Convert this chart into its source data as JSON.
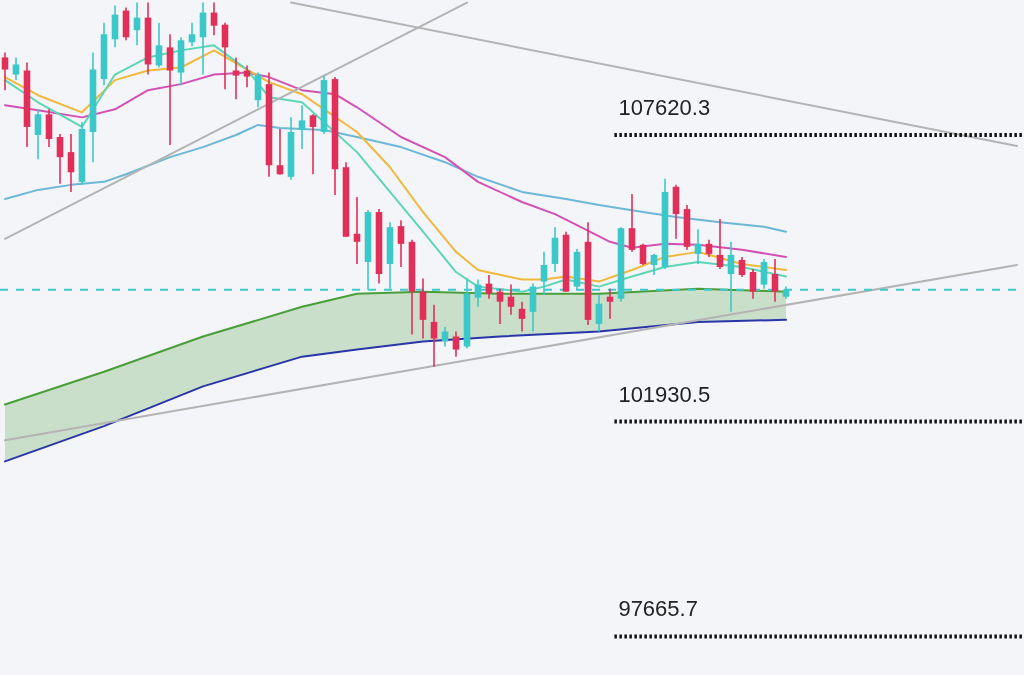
{
  "chart_data": {
    "type": "candlestick",
    "ylim": [
      96900,
      110300
    ],
    "categories": [
      null,
      null,
      null,
      null,
      null,
      null,
      null,
      null,
      null,
      null,
      null,
      null,
      null,
      null,
      null,
      null,
      null,
      null,
      null,
      null,
      null,
      null,
      null,
      null,
      null,
      null,
      null,
      null,
      null,
      null,
      null,
      null,
      null,
      null,
      null,
      null,
      null,
      null,
      null,
      null,
      null,
      null,
      null,
      null,
      null,
      null,
      null,
      null,
      null,
      null,
      null,
      null,
      null,
      null,
      null,
      null,
      null,
      null,
      null,
      null,
      null,
      null,
      null,
      null,
      null,
      null,
      null,
      null,
      null,
      null,
      null,
      null,
      null,
      null,
      null,
      null,
      null,
      null,
      null,
      null,
      null,
      null,
      null,
      null,
      null,
      null,
      null,
      null,
      null,
      null,
      null,
      null,
      null
    ],
    "ohlc": [
      [
        109160,
        109260,
        108510,
        108920
      ],
      [
        108820,
        109160,
        108710,
        109020
      ],
      [
        108900,
        109060,
        107380,
        107780
      ],
      [
        107620,
        108130,
        107140,
        108030
      ],
      [
        108030,
        108130,
        107380,
        107540
      ],
      [
        107580,
        107640,
        106650,
        107180
      ],
      [
        107280,
        107640,
        106490,
        106880
      ],
      [
        106690,
        107880,
        106630,
        107740
      ],
      [
        107680,
        109260,
        107080,
        108920
      ],
      [
        108730,
        109850,
        108610,
        109620
      ],
      [
        109520,
        110190,
        109360,
        110010
      ],
      [
        110090,
        110150,
        109500,
        109560
      ],
      [
        109700,
        110250,
        109400,
        109950
      ],
      [
        109950,
        110250,
        108820,
        109020
      ],
      [
        109000,
        109850,
        108960,
        109400
      ],
      [
        109360,
        109620,
        107420,
        108900
      ],
      [
        108860,
        109560,
        108610,
        109500
      ],
      [
        109460,
        109850,
        109380,
        109620
      ],
      [
        109560,
        110250,
        108820,
        110050
      ],
      [
        110050,
        110250,
        109600,
        109790
      ],
      [
        109810,
        109850,
        108530,
        109360
      ],
      [
        108900,
        109160,
        108330,
        108800
      ],
      [
        108900,
        109000,
        108570,
        108780
      ],
      [
        108310,
        108860,
        108170,
        108820
      ],
      [
        108630,
        108860,
        106790,
        107020
      ],
      [
        107020,
        107740,
        106830,
        106840
      ],
      [
        106790,
        107970,
        106730,
        107680
      ],
      [
        107720,
        108210,
        107340,
        107910
      ],
      [
        108010,
        108030,
        106840,
        107780
      ],
      [
        107680,
        108800,
        107640,
        108710
      ],
      [
        108730,
        108770,
        106430,
        106940
      ],
      [
        106980,
        107080,
        105600,
        105600
      ],
      [
        105660,
        106390,
        105060,
        105500
      ],
      [
        105100,
        106130,
        104550,
        106090
      ],
      [
        106090,
        106150,
        104670,
        104860
      ],
      [
        105060,
        105890,
        104570,
        105790
      ],
      [
        105810,
        105930,
        105000,
        105460
      ],
      [
        105500,
        105540,
        103660,
        104510
      ],
      [
        104510,
        104770,
        103580,
        103950
      ],
      [
        103910,
        104250,
        103020,
        103580
      ],
      [
        103520,
        103810,
        103420,
        103720
      ],
      [
        103620,
        103720,
        103220,
        103360
      ],
      [
        103420,
        104770,
        103380,
        104470
      ],
      [
        104390,
        104750,
        104210,
        104650
      ],
      [
        104670,
        104840,
        104370,
        104470
      ],
      [
        104510,
        104570,
        103870,
        104310
      ],
      [
        104410,
        104650,
        104050,
        104210
      ],
      [
        104170,
        104310,
        103720,
        103970
      ],
      [
        104110,
        104670,
        103720,
        104610
      ],
      [
        104710,
        105300,
        104450,
        105040
      ],
      [
        105060,
        105790,
        104900,
        105580
      ],
      [
        105640,
        105700,
        104510,
        104510
      ],
      [
        104610,
        105360,
        104550,
        105300
      ],
      [
        105500,
        105890,
        103850,
        103950
      ],
      [
        103870,
        104450,
        103720,
        104270
      ],
      [
        104410,
        104570,
        103970,
        104310
      ],
      [
        104370,
        105790,
        104310,
        105770
      ],
      [
        105770,
        106450,
        105300,
        105340
      ],
      [
        105440,
        105460,
        105040,
        105060
      ],
      [
        105040,
        105260,
        104840,
        105240
      ],
      [
        105000,
        106750,
        104960,
        106490
      ],
      [
        106590,
        106630,
        105560,
        106050
      ],
      [
        106150,
        106230,
        105340,
        105400
      ],
      [
        105260,
        105750,
        105060,
        105460
      ],
      [
        105460,
        105540,
        105200,
        105260
      ],
      [
        105240,
        105950,
        104960,
        105000
      ],
      [
        104860,
        105500,
        104110,
        105240
      ],
      [
        105140,
        105200,
        104800,
        104840
      ],
      [
        104900,
        104960,
        104370,
        104510
      ],
      [
        104650,
        105160,
        104570,
        105100
      ],
      [
        104860,
        105160,
        104310,
        104510
      ],
      [
        104410,
        104610,
        104370,
        104550
      ],
      null,
      null,
      null,
      null,
      null,
      null,
      null,
      null,
      null,
      null,
      null,
      null,
      null,
      null,
      null,
      null,
      null,
      null,
      null,
      null,
      null
    ],
    "colors": [
      "#e0305a",
      "#3cc8c8",
      "#e0305a",
      "#3cc8c8",
      "#e0305a",
      "#e0305a",
      "#e0305a",
      "#3cc8c8",
      "#3cc8c8",
      "#3cc8c8",
      "#3cc8c8",
      "#e0305a",
      "#3cc8c8",
      "#e0305a",
      "#3cc8c8",
      "#e0305a",
      "#3cc8c8",
      "#3cc8c8",
      "#3cc8c8",
      "#e0305a",
      "#e0305a",
      "#e0305a",
      "#e0305a",
      "#3cc8c8",
      "#e0305a",
      "#e0305a",
      "#3cc8c8",
      "#3cc8c8",
      "#e0305a",
      "#3cc8c8",
      "#e0305a",
      "#e0305a",
      "#e0305a",
      "#3cc8c8",
      "#e0305a",
      "#3cc8c8",
      "#e0305a",
      "#e0305a",
      "#e0305a",
      "#e0305a",
      "#3cc8c8",
      "#e0305a",
      "#3cc8c8",
      "#3cc8c8",
      "#e0305a",
      "#e0305a",
      "#e0305a",
      "#e0305a",
      "#3cc8c8",
      "#3cc8c8",
      "#3cc8c8",
      "#e0305a",
      "#3cc8c8",
      "#e0305a",
      "#3cc8c8",
      "#e0305a",
      "#3cc8c8",
      "#e0305a",
      "#e0305a",
      "#3cc8c8",
      "#3cc8c8",
      "#e0305a",
      "#e0305a",
      "#3cc8c8",
      "#e0305a",
      "#e0305a",
      "#3cc8c8",
      "#e0305a",
      "#e0305a",
      "#3cc8c8",
      "#e0305a",
      "#3cc8c8",
      null,
      null,
      null,
      null,
      null,
      null,
      null,
      null,
      null,
      null,
      null,
      null,
      null,
      null,
      null,
      null,
      null,
      null,
      null,
      null,
      null
    ],
    "series": [
      {
        "type": "line",
        "color": "#4a9e3a",
        "values": [
          102270,
          null,
          null,
          null,
          null,
          null,
          null,
          null,
          null,
          102920,
          null,
          null,
          null,
          null,
          null,
          null,
          null,
          null,
          103620,
          null,
          null,
          null,
          null,
          null,
          null,
          null,
          null,
          104210,
          null,
          null,
          null,
          null,
          104470,
          null,
          null,
          null,
          null,
          null,
          104510,
          null,
          null,
          null,
          null,
          null,
          null,
          104470,
          null,
          null,
          null,
          null,
          null,
          null,
          null,
          null,
          104470,
          null,
          null,
          null,
          null,
          null,
          null,
          null,
          null,
          104570,
          null,
          null,
          null,
          null,
          null,
          null,
          null,
          104510,
          null,
          null,
          null,
          null,
          null,
          null,
          null,
          null,
          null,
          null,
          null,
          null,
          null,
          null,
          null,
          null,
          null,
          null,
          null,
          null,
          null
        ],
        "lower": [
          101140,
          null,
          null,
          null,
          null,
          null,
          null,
          null,
          null,
          101840,
          null,
          null,
          null,
          null,
          null,
          null,
          null,
          null,
          102630,
          null,
          null,
          null,
          null,
          null,
          null,
          null,
          null,
          103220,
          null,
          null,
          null,
          null,
          103360,
          null,
          null,
          null,
          null,
          null,
          103520,
          null,
          null,
          null,
          null,
          null,
          null,
          103620,
          null,
          null,
          null,
          null,
          null,
          null,
          null,
          null,
          103720,
          null,
          null,
          null,
          null,
          null,
          null,
          null,
          null,
          103910,
          null,
          null,
          null,
          null,
          null,
          null,
          null,
          103950,
          null,
          null,
          null,
          null,
          null,
          null,
          null,
          null,
          null,
          null,
          null,
          null,
          null,
          null,
          null,
          null,
          null,
          null,
          null,
          null,
          null
        ],
        "upper": [
          102270,
          null,
          null,
          null,
          null,
          null,
          null,
          null,
          null,
          102920,
          null,
          null,
          null,
          null,
          null,
          null,
          null,
          null,
          103620,
          null,
          null,
          null,
          null,
          null,
          null,
          null,
          null,
          104210,
          null,
          null,
          null,
          null,
          104470,
          null,
          null,
          null,
          null,
          null,
          104510,
          null,
          null,
          null,
          null,
          null,
          null,
          104470,
          null,
          null,
          null,
          null,
          null,
          null,
          null,
          null,
          104470,
          null,
          null,
          null,
          null,
          null,
          null,
          null,
          null,
          104570,
          null,
          null,
          null,
          null,
          null,
          null,
          null,
          104510,
          null,
          null,
          null,
          null,
          null,
          null,
          null,
          null,
          null,
          null,
          null,
          null,
          null,
          null,
          null,
          null,
          null,
          null,
          null,
          null,
          null
        ]
      },
      {
        "type": "line",
        "color": "#2a36a8",
        "values": [
          101140,
          null,
          null,
          null,
          null,
          null,
          null,
          null,
          null,
          101840,
          null,
          null,
          null,
          null,
          null,
          null,
          null,
          null,
          102630,
          null,
          null,
          null,
          null,
          null,
          null,
          null,
          null,
          103220,
          null,
          null,
          null,
          null,
          103360,
          null,
          null,
          null,
          null,
          null,
          103520,
          null,
          null,
          null,
          null,
          null,
          null,
          103620,
          null,
          null,
          null,
          null,
          null,
          null,
          null,
          null,
          103720,
          null,
          null,
          null,
          null,
          null,
          null,
          null,
          null,
          103910,
          null,
          null,
          null,
          null,
          null,
          null,
          null,
          103950,
          null,
          null,
          null,
          null,
          null,
          null,
          null,
          null,
          null,
          null,
          null,
          null,
          null,
          null,
          null,
          null,
          null,
          null,
          null,
          null,
          null
        ]
      },
      {
        "type": "line",
        "color": "#6cb8d6",
        "values": [
          106350,
          null,
          null,
          106530,
          null,
          null,
          106630,
          null,
          null,
          106690,
          null,
          106840,
          null,
          null,
          null,
          107180,
          null,
          null,
          107380,
          null,
          null,
          107620,
          null,
          107820,
          null,
          107760,
          null,
          null,
          null,
          107720,
          null,
          null,
          107580,
          null,
          null,
          null,
          107380,
          null,
          null,
          null,
          107080,
          null,
          null,
          106790,
          null,
          null,
          null,
          106490,
          null,
          null,
          null,
          106350,
          null,
          null,
          106230,
          null,
          null,
          null,
          106090,
          null,
          null,
          105990,
          null,
          null,
          null,
          105890,
          null,
          null,
          null,
          105800,
          null,
          105700,
          null,
          null,
          null,
          null,
          null,
          null,
          null,
          null,
          null,
          null,
          null,
          null,
          null,
          null,
          null,
          null,
          null,
          null,
          null,
          null,
          null
        ]
      },
      {
        "type": "line",
        "color": "#d252b4",
        "values": [
          108210,
          null,
          null,
          108110,
          null,
          null,
          null,
          107970,
          null,
          null,
          108130,
          null,
          null,
          108510,
          null,
          null,
          108630,
          null,
          null,
          108820,
          null,
          null,
          108860,
          null,
          108770,
          null,
          null,
          108510,
          null,
          null,
          108430,
          null,
          108170,
          null,
          null,
          null,
          107580,
          null,
          null,
          null,
          107180,
          null,
          null,
          106690,
          null,
          null,
          null,
          106290,
          null,
          null,
          106050,
          null,
          105830,
          null,
          null,
          105500,
          null,
          105380,
          null,
          null,
          105460,
          null,
          null,
          105440,
          null,
          null,
          null,
          105340,
          null,
          null,
          null,
          105200,
          null,
          null,
          null,
          null,
          null,
          null,
          null,
          null,
          null,
          null,
          null,
          null,
          null,
          null,
          null,
          null,
          null,
          null,
          null,
          null,
          null
        ]
      },
      {
        "type": "line",
        "color": "#f0b83c",
        "values": [
          108770,
          null,
          null,
          108410,
          null,
          null,
          null,
          108070,
          null,
          null,
          108710,
          null,
          null,
          108900,
          null,
          null,
          108960,
          null,
          null,
          109300,
          null,
          null,
          108920,
          null,
          108670,
          null,
          null,
          108430,
          null,
          null,
          null,
          null,
          107680,
          null,
          null,
          106980,
          null,
          null,
          106090,
          null,
          null,
          105300,
          null,
          104940,
          null,
          null,
          null,
          104750,
          null,
          104750,
          null,
          104810,
          null,
          null,
          104710,
          null,
          null,
          104940,
          null,
          null,
          105200,
          null,
          null,
          105300,
          null,
          null,
          null,
          105060,
          null,
          null,
          null,
          104940,
          null,
          null,
          null,
          null,
          null,
          null,
          null,
          null,
          null,
          null,
          null,
          null,
          null,
          null,
          null,
          null,
          null,
          null,
          null,
          null,
          null
        ]
      },
      {
        "type": "line",
        "color": "#5cd6b4",
        "values": [
          108710,
          null,
          null,
          108270,
          null,
          null,
          null,
          107780,
          null,
          null,
          108820,
          null,
          null,
          109160,
          null,
          null,
          109300,
          null,
          null,
          109400,
          null,
          null,
          108920,
          null,
          108370,
          null,
          null,
          108270,
          null,
          null,
          null,
          null,
          107280,
          null,
          null,
          106490,
          null,
          null,
          105700,
          null,
          null,
          104900,
          null,
          104610,
          null,
          null,
          null,
          104510,
          null,
          104610,
          null,
          104750,
          null,
          null,
          104610,
          null,
          null,
          104810,
          null,
          null,
          105000,
          null,
          null,
          105100,
          null,
          null,
          null,
          105000,
          null,
          null,
          null,
          104810,
          null,
          null,
          null,
          null,
          null,
          null,
          null,
          null,
          null,
          null,
          null,
          null,
          null,
          null,
          null,
          null,
          null,
          null,
          null,
          null,
          null
        ]
      },
      {
        "type": "line",
        "color": "#b4b4b4",
        "values": [
          105560,
          null,
          null,
          null,
          null,
          null,
          null,
          null,
          null,
          null,
          null,
          null,
          null,
          null,
          null,
          null,
          null,
          null,
          null,
          null,
          null,
          null,
          null,
          null,
          null,
          null,
          null,
          null,
          null,
          null,
          null,
          null,
          null,
          null,
          null,
          null,
          null,
          null,
          null,
          null,
          null,
          null,
          110250,
          null,
          null,
          null,
          null,
          null,
          null,
          null,
          null,
          null,
          null,
          null,
          null,
          null,
          null,
          null,
          null,
          null,
          null,
          null,
          null,
          null,
          null,
          null,
          null,
          null,
          null,
          null,
          null,
          null,
          null,
          null,
          null,
          null,
          null,
          null,
          null,
          null,
          null,
          null,
          null,
          null,
          null,
          null,
          null,
          null,
          null,
          null,
          null,
          null,
          null
        ]
      },
      {
        "type": "line",
        "color": "#b4b4b4",
        "values": [
          null,
          null,
          null,
          null,
          null,
          null,
          null,
          null,
          null,
          null,
          null,
          null,
          null,
          null,
          null,
          null,
          null,
          null,
          null,
          null,
          null,
          null,
          null,
          null,
          null,
          null,
          110250,
          null,
          null,
          null,
          null,
          null,
          null,
          null,
          null,
          null,
          null,
          null,
          null,
          null,
          null,
          null,
          null,
          null,
          null,
          null,
          null,
          null,
          null,
          null,
          null,
          null,
          null,
          null,
          null,
          null,
          null,
          null,
          null,
          null,
          null,
          null,
          null,
          null,
          null,
          null,
          null,
          null,
          null,
          null,
          null,
          null,
          null,
          null,
          null,
          null,
          null,
          null,
          null,
          null,
          null,
          null,
          null,
          null,
          null,
          null,
          null,
          null,
          null,
          null,
          null,
          null,
          107400
        ]
      },
      {
        "type": "line",
        "color": "#b4b4b4",
        "values": [
          101560,
          null,
          null,
          null,
          null,
          null,
          null,
          null,
          null,
          null,
          null,
          null,
          null,
          null,
          null,
          null,
          null,
          null,
          null,
          null,
          null,
          null,
          null,
          null,
          null,
          null,
          null,
          null,
          null,
          null,
          null,
          null,
          null,
          null,
          null,
          null,
          null,
          null,
          null,
          null,
          null,
          null,
          null,
          null,
          null,
          null,
          null,
          null,
          null,
          null,
          null,
          null,
          null,
          null,
          null,
          null,
          null,
          null,
          null,
          null,
          null,
          null,
          null,
          null,
          null,
          null,
          null,
          null,
          null,
          null,
          null,
          null,
          null,
          null,
          null,
          null,
          null,
          null,
          null,
          null,
          null,
          null,
          null,
          null,
          null,
          null,
          null,
          null,
          null,
          null,
          null,
          null,
          105040
        ]
      }
    ],
    "ref_lines": [
      {
        "axis": "y",
        "value": 104550,
        "color": "#40c8d0",
        "line_style": "dashed"
      },
      {
        "axis": "y",
        "value": 107620.3,
        "label": "107620.3",
        "color": "#111111",
        "line_style": "dotted"
      },
      {
        "axis": "y",
        "value": 101930.5,
        "label": "101930.5",
        "color": "#111111",
        "line_style": "dotted"
      },
      {
        "axis": "y",
        "value": 97665.7,
        "label": "97665.7",
        "color": "#111111",
        "line_style": "dotted"
      }
    ]
  }
}
